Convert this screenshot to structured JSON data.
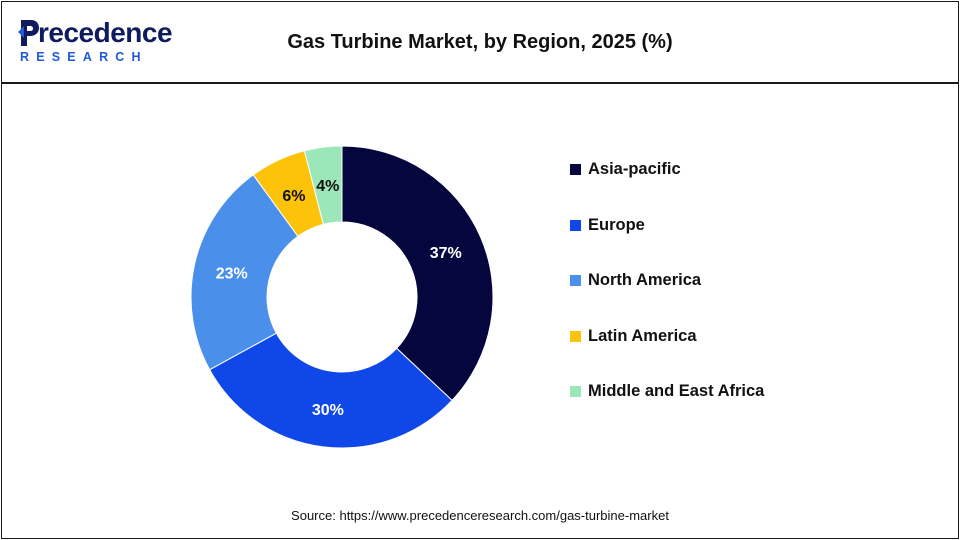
{
  "logo": {
    "name": "Precedence",
    "sub": "RESEARCH"
  },
  "header": {
    "title": "Gas Turbine Market, by Region, 2025 (%)"
  },
  "chart_data": {
    "type": "pie",
    "variant": "donut",
    "title": "Gas Turbine Market, by Region, 2025 (%)",
    "categories": [
      "Asia-pacific",
      "Europe",
      "North America",
      "Latin America",
      "Middle and East Africa"
    ],
    "values": [
      37,
      30,
      23,
      6,
      4
    ],
    "labels": [
      "37%",
      "30%",
      "23%",
      "6%",
      "4%"
    ],
    "colors": [
      "#06063f",
      "#0f47e8",
      "#4a90ea",
      "#fcc30a",
      "#9be7b9"
    ],
    "label_colors": [
      "#ffffff",
      "#ffffff",
      "#ffffff",
      "#111111",
      "#111111"
    ],
    "legend_position": "right",
    "start_angle": "12 o'clock, clockwise"
  },
  "footer": {
    "source": "Source: https://www.precedenceresearch.com/gas-turbine-market"
  }
}
